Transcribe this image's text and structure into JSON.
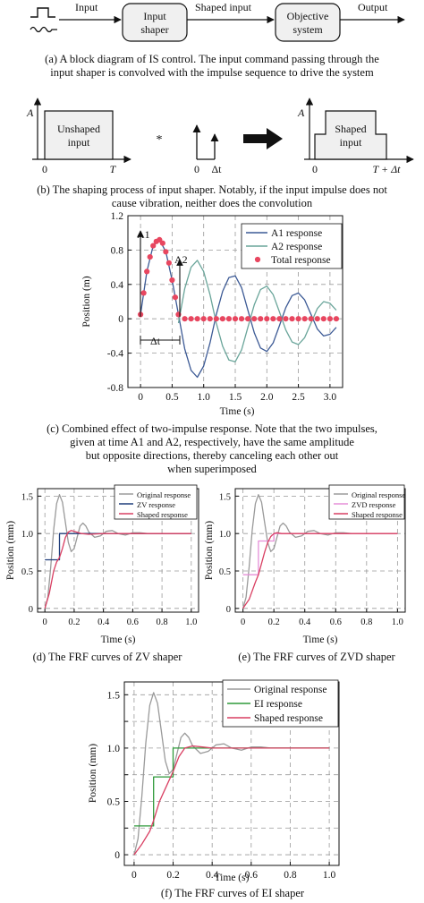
{
  "panel_a": {
    "labels": {
      "input": "Input",
      "shaped_input": "Shaped input",
      "output": "Output"
    },
    "blocks": {
      "shaper_line1": "Input",
      "shaper_line2": "shaper",
      "system_line1": "Objective",
      "system_line2": "system"
    },
    "caption_line1": "(a) A block diagram of IS control. The input command passing through the",
    "caption_line2": "input shaper is convolved with the impulse sequence to drive the system"
  },
  "panel_b": {
    "amp_label_1": "A",
    "amp_label_2": "A",
    "unshaped_line1": "Unshaped",
    "unshaped_line2": "input",
    "zero_1": "0",
    "t_label": "T",
    "convolve": "*",
    "zero_2": "0",
    "dt_label": "Δt",
    "shaped_line1": "Shaped",
    "shaped_line2": "input",
    "zero_3": "0",
    "t_dt_label": "T + Δt",
    "caption_line1": "(b) The shaping process of input shaper. Notably, if the input impulse does not",
    "caption_line2": "cause vibration, neither does the convolution"
  },
  "panel_c": {
    "annot_a1": "A1",
    "annot_a2": "A2",
    "annot_dt": "Δt",
    "caption_lines": [
      "(c) Combined effect of two-impulse response. Note that the two impulses,",
      "given at time A1 and A2, respectively, have the same amplitude",
      "but opposite directions, thereby canceling each other out",
      "when superimposed"
    ]
  },
  "panel_d": {
    "caption": "(d) The FRF curves of ZV shaper"
  },
  "panel_e": {
    "caption": "(e) The FRF curves of ZVD shaper"
  },
  "panel_f": {
    "caption": "(f) The FRF curves of EI shaper"
  },
  "colors": {
    "a1": "#3c5a95",
    "a2": "#6aa59a",
    "total": "#e8465f",
    "original": "#9a9a9a",
    "zv": "#1f3d7a",
    "zvd": "#e58fd8",
    "ei": "#2e9a3a",
    "shaped": "#d93f62"
  },
  "chart_data": [
    {
      "id": "c",
      "type": "line",
      "xlabel": "Time (s)",
      "ylabel": "Position (m)",
      "xlim": [
        -0.2,
        3.2
      ],
      "ylim": [
        -0.8,
        1.2
      ],
      "xticks": [
        "0",
        "0.5",
        "1.0",
        "1.5",
        "2.0",
        "2.5",
        "3.0"
      ],
      "xtick_values": [
        0,
        0.5,
        1.0,
        1.5,
        2.0,
        2.5,
        3.0
      ],
      "yticks": [
        "-0.8",
        "-0.4",
        "0",
        "0.4",
        "0.8",
        "1.2"
      ],
      "ytick_values": [
        -0.8,
        -0.4,
        0,
        0.4,
        0.8,
        1.2
      ],
      "grid": true,
      "legend": "top-right",
      "series": [
        {
          "name": "A1 response",
          "style": "line",
          "color": "#3c5a95",
          "x": [
            0,
            0.1,
            0.2,
            0.3,
            0.4,
            0.5,
            0.6,
            0.7,
            0.8,
            0.9,
            1.0,
            1.1,
            1.2,
            1.3,
            1.4,
            1.5,
            1.6,
            1.7,
            1.8,
            1.9,
            2.0,
            2.1,
            2.2,
            2.3,
            2.4,
            2.5,
            2.6,
            2.7,
            2.8,
            2.9,
            3.0,
            3.1
          ],
          "values": [
            0.05,
            0.55,
            0.85,
            0.92,
            0.78,
            0.45,
            0.05,
            -0.35,
            -0.6,
            -0.68,
            -0.55,
            -0.28,
            0.05,
            0.32,
            0.48,
            0.5,
            0.36,
            0.1,
            -0.16,
            -0.34,
            -0.38,
            -0.28,
            -0.08,
            0.13,
            0.27,
            0.3,
            0.22,
            0.05,
            -0.12,
            -0.2,
            -0.18,
            -0.1
          ]
        },
        {
          "name": "A2 response",
          "style": "line",
          "color": "#6aa59a",
          "x": [
            0.6,
            0.7,
            0.8,
            0.9,
            1.0,
            1.1,
            1.2,
            1.3,
            1.4,
            1.5,
            1.6,
            1.7,
            1.8,
            1.9,
            2.0,
            2.1,
            2.2,
            2.3,
            2.4,
            2.5,
            2.6,
            2.7,
            2.8,
            2.9,
            3.0,
            3.1
          ],
          "values": [
            -0.05,
            0.35,
            0.6,
            0.68,
            0.55,
            0.28,
            -0.05,
            -0.32,
            -0.48,
            -0.5,
            -0.36,
            -0.1,
            0.16,
            0.34,
            0.38,
            0.28,
            0.08,
            -0.13,
            -0.27,
            -0.3,
            -0.22,
            -0.05,
            0.12,
            0.2,
            0.18,
            0.1
          ]
        },
        {
          "name": "Total response",
          "style": "markers",
          "color": "#e8465f",
          "x": [
            0,
            0.05,
            0.1,
            0.15,
            0.2,
            0.25,
            0.3,
            0.35,
            0.4,
            0.45,
            0.5,
            0.55,
            0.6,
            0.7,
            0.8,
            0.9,
            1.0,
            1.1,
            1.2,
            1.3,
            1.4,
            1.5,
            1.6,
            1.7,
            1.8,
            1.9,
            2.0,
            2.1,
            2.2,
            2.3,
            2.4,
            2.5,
            2.6,
            2.7,
            2.8,
            2.9,
            3.0,
            3.1
          ],
          "values": [
            0.05,
            0.3,
            0.55,
            0.72,
            0.85,
            0.9,
            0.92,
            0.88,
            0.78,
            0.65,
            0.45,
            0.25,
            0.05,
            0,
            0,
            0,
            0,
            0,
            0,
            0,
            0,
            0,
            0,
            0,
            0,
            0,
            0,
            0,
            0,
            0,
            0,
            0,
            0,
            0,
            0,
            0,
            0,
            0
          ]
        }
      ]
    },
    {
      "id": "d",
      "type": "line",
      "xlabel": "Time (s)",
      "ylabel": "Position (mm)",
      "xlim": [
        -0.05,
        1.05
      ],
      "ylim": [
        -0.05,
        1.6
      ],
      "xticks": [
        "0",
        "0.2",
        "0.4",
        "0.6",
        "0.8",
        "1.0"
      ],
      "xtick_values": [
        0,
        0.2,
        0.4,
        0.6,
        0.8,
        1.0
      ],
      "yticks": [
        "0",
        "0.5",
        "1.0",
        "1.5"
      ],
      "ytick_values": [
        0,
        0.5,
        1.0,
        1.5
      ],
      "grid": true,
      "legend": "top-right",
      "series": [
        {
          "name": "Original response",
          "style": "line",
          "color": "#9a9a9a",
          "x": [
            0,
            0.02,
            0.04,
            0.06,
            0.08,
            0.1,
            0.12,
            0.14,
            0.16,
            0.18,
            0.2,
            0.22,
            0.24,
            0.26,
            0.28,
            0.3,
            0.34,
            0.38,
            0.42,
            0.46,
            0.5,
            0.55,
            0.6,
            0.65,
            0.7,
            0.8,
            0.9,
            1.0
          ],
          "values": [
            0,
            0.15,
            0.55,
            1.05,
            1.4,
            1.52,
            1.42,
            1.15,
            0.88,
            0.76,
            0.8,
            0.95,
            1.1,
            1.14,
            1.1,
            1.02,
            0.95,
            0.97,
            1.03,
            1.04,
            1.0,
            0.98,
            1.01,
            1.01,
            1.0,
            1.0,
            1.0,
            1.0
          ]
        },
        {
          "name": "ZV response",
          "style": "step",
          "color": "#1f3d7a",
          "x": [
            0,
            0.1,
            0.1,
            1.0
          ],
          "values": [
            0.65,
            0.65,
            1.0,
            1.0
          ]
        },
        {
          "name": "Shaped response",
          "style": "line",
          "color": "#d93f62",
          "x": [
            0,
            0.03,
            0.06,
            0.08,
            0.1,
            0.12,
            0.14,
            0.16,
            0.18,
            0.2,
            0.25,
            0.3,
            0.4,
            0.5,
            0.6,
            1.0
          ],
          "values": [
            0,
            0.2,
            0.5,
            0.62,
            0.68,
            0.8,
            0.95,
            1.02,
            1.04,
            1.03,
            1.0,
            0.99,
            1.0,
            1.0,
            1.0,
            1.0
          ]
        }
      ]
    },
    {
      "id": "e",
      "type": "line",
      "xlabel": "Time (s)",
      "ylabel": "Position (mm)",
      "xlim": [
        -0.05,
        1.05
      ],
      "ylim": [
        -0.05,
        1.6
      ],
      "xticks": [
        "0",
        "0.2",
        "0.4",
        "0.6",
        "0.8",
        "1.0"
      ],
      "xtick_values": [
        0,
        0.2,
        0.4,
        0.6,
        0.8,
        1.0
      ],
      "yticks": [
        "0",
        "0.5",
        "1.0",
        "1.5"
      ],
      "ytick_values": [
        0,
        0.5,
        1.0,
        1.5
      ],
      "grid": true,
      "legend": "top-right",
      "series": [
        {
          "name": "Original response",
          "style": "line",
          "color": "#9a9a9a",
          "x": [
            0,
            0.02,
            0.04,
            0.06,
            0.08,
            0.1,
            0.12,
            0.14,
            0.16,
            0.18,
            0.2,
            0.22,
            0.24,
            0.26,
            0.28,
            0.3,
            0.34,
            0.38,
            0.42,
            0.46,
            0.5,
            0.55,
            0.6,
            0.65,
            0.7,
            0.8,
            0.9,
            1.0
          ],
          "values": [
            0,
            0.15,
            0.55,
            1.05,
            1.4,
            1.52,
            1.42,
            1.15,
            0.88,
            0.76,
            0.8,
            0.95,
            1.1,
            1.14,
            1.1,
            1.02,
            0.95,
            0.97,
            1.03,
            1.04,
            1.0,
            0.98,
            1.01,
            1.01,
            1.0,
            1.0,
            1.0,
            1.0
          ]
        },
        {
          "name": "ZVD response",
          "style": "step",
          "color": "#e58fd8",
          "x": [
            0,
            0.1,
            0.1,
            0.2,
            0.2,
            1.0
          ],
          "values": [
            0.45,
            0.45,
            0.9,
            0.9,
            1.0,
            1.0
          ]
        },
        {
          "name": "Shaped response",
          "style": "line",
          "color": "#d93f62",
          "x": [
            0,
            0.04,
            0.08,
            0.1,
            0.12,
            0.14,
            0.16,
            0.18,
            0.2,
            0.22,
            0.25,
            0.3,
            0.4,
            1.0
          ],
          "values": [
            0,
            0.12,
            0.35,
            0.45,
            0.6,
            0.75,
            0.88,
            0.96,
            1.0,
            1.01,
            1.0,
            1.0,
            1.0,
            1.0
          ]
        }
      ]
    },
    {
      "id": "f",
      "type": "line",
      "xlabel": "Time (s)",
      "ylabel": "Position (mm)",
      "xlim": [
        -0.05,
        1.05
      ],
      "ylim": [
        -0.1,
        1.62
      ],
      "xticks": [
        "0",
        "0.2",
        "0.4",
        "0.6",
        "0.8",
        "1.0"
      ],
      "xtick_values": [
        0,
        0.2,
        0.4,
        0.6,
        0.8,
        1.0
      ],
      "yticks": [
        "0",
        "0.25",
        "0.5",
        "0.75",
        "1.0",
        "1.25",
        "1.5"
      ],
      "ytick_values": [
        0,
        0.25,
        0.5,
        0.75,
        1.0,
        1.25,
        1.5
      ],
      "ytick_labels_shown": [
        "0",
        "0.5",
        "1.0",
        "1.5"
      ],
      "grid": true,
      "legend": "top-right",
      "series": [
        {
          "name": "Original response",
          "style": "line",
          "color": "#9a9a9a",
          "x": [
            0,
            0.02,
            0.04,
            0.06,
            0.08,
            0.1,
            0.12,
            0.14,
            0.16,
            0.18,
            0.2,
            0.22,
            0.24,
            0.26,
            0.28,
            0.3,
            0.34,
            0.38,
            0.42,
            0.46,
            0.5,
            0.55,
            0.6,
            0.65,
            0.7,
            0.8,
            0.9,
            1.0
          ],
          "values": [
            0,
            0.15,
            0.55,
            1.05,
            1.4,
            1.52,
            1.42,
            1.15,
            0.88,
            0.76,
            0.8,
            0.95,
            1.1,
            1.14,
            1.1,
            1.02,
            0.95,
            0.97,
            1.03,
            1.04,
            1.0,
            0.98,
            1.01,
            1.01,
            1.0,
            1.0,
            1.0,
            1.0
          ]
        },
        {
          "name": "EI response",
          "style": "step",
          "color": "#2e9a3a",
          "x": [
            0,
            0.1,
            0.1,
            0.2,
            0.2,
            1.0
          ],
          "values": [
            0.27,
            0.27,
            0.73,
            0.73,
            1.0,
            1.0
          ]
        },
        {
          "name": "Shaped response",
          "style": "line",
          "color": "#d93f62",
          "x": [
            0,
            0.04,
            0.08,
            0.1,
            0.13,
            0.16,
            0.2,
            0.23,
            0.26,
            0.3,
            0.35,
            0.4,
            0.5,
            1.0
          ],
          "values": [
            0,
            0.1,
            0.22,
            0.32,
            0.5,
            0.62,
            0.78,
            0.92,
            1.0,
            1.02,
            1.01,
            1.0,
            1.0,
            1.0
          ]
        }
      ]
    }
  ]
}
